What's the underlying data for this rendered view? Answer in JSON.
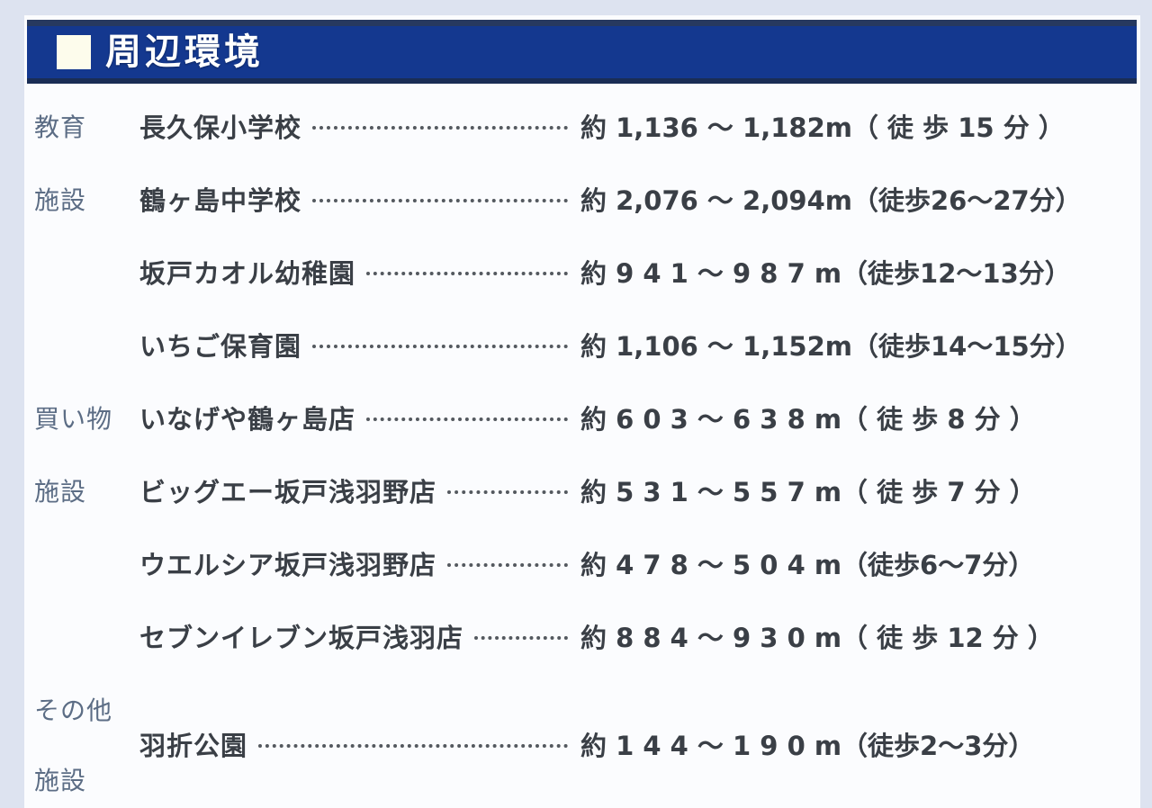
{
  "header": {
    "title": "周辺環境"
  },
  "rows": [
    {
      "category": "教育",
      "name": "長久保小学校",
      "distance": "約 1,136 ～ 1,182m（ 徒 歩 15 分 ）"
    },
    {
      "category": "施設",
      "name": "鶴ヶ島中学校",
      "distance": "約 2,076 ～ 2,094m（徒歩26～27分）"
    },
    {
      "category": "",
      "name": "坂戸カオル幼稚園",
      "distance": "約 9 4 1 ～ 9 8 7 m（徒歩12～13分）"
    },
    {
      "category": "",
      "name": "いちご保育園",
      "distance": "約 1,106 ～ 1,152m（徒歩14～15分）"
    },
    {
      "category": "買い物",
      "name": "いなげや鶴ヶ島店",
      "distance": "約 6 0 3 ～ 6 3 8 m（ 徒 歩 8 分 ）"
    },
    {
      "category": "施設",
      "name": "ビッグエー坂戸浅羽野店",
      "distance": "約 5 3 1 ～ 5 5 7 m（ 徒 歩 7 分 ）"
    },
    {
      "category": "",
      "name": "ウエルシア坂戸浅羽野店",
      "distance": "約 4 7 8 ～ 5 0 4 m（徒歩6～7分）"
    },
    {
      "category": "",
      "name": "セブンイレブン坂戸浅羽店",
      "distance": "約 8 8 4 ～ 9 3 0 m（ 徒 歩 12 分 ）"
    },
    {
      "category_top": "その他",
      "category_bottom": "施設",
      "name": "羽折公園",
      "distance": "約 1 4 4 ～ 1 9 0 m（徒歩2～3分）"
    }
  ],
  "colors": {
    "bar_blue": "#14388f",
    "bar_edge_dark": "#1a2d55",
    "category_text": "#5c6d85",
    "body_text": "#3a3f46",
    "page_background": "#dde3f0",
    "panel_background": "#fbfcfe",
    "bullet_square": "#fdfcec"
  }
}
